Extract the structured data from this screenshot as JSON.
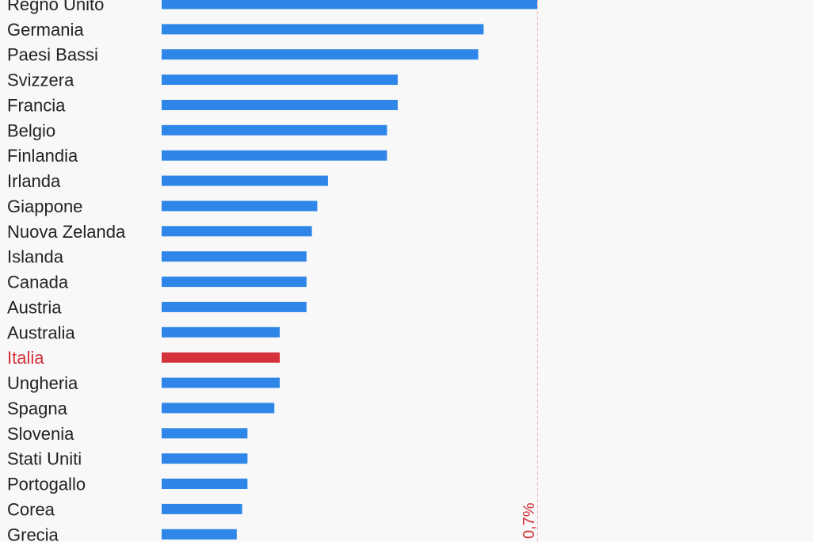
{
  "chart_data": {
    "type": "bar",
    "orientation": "horizontal",
    "title": "",
    "xlabel": "",
    "ylabel": "",
    "categories": [
      "Regno Unito",
      "Germania",
      "Paesi Bassi",
      "Svizzera",
      "Francia",
      "Belgio",
      "Finlandia",
      "Irlanda",
      "Giappone",
      "Nuova Zelanda",
      "Islanda",
      "Canada",
      "Austria",
      "Australia",
      "Italia",
      "Ungheria",
      "Spagna",
      "Slovenia",
      "Stati Uniti",
      "Portogallo",
      "Corea",
      "Grecia"
    ],
    "values": [
      0.7,
      0.6,
      0.59,
      0.44,
      0.44,
      0.42,
      0.42,
      0.31,
      0.29,
      0.28,
      0.27,
      0.27,
      0.27,
      0.22,
      0.22,
      0.22,
      0.21,
      0.16,
      0.16,
      0.16,
      0.15,
      0.14
    ],
    "highlight": "Italia",
    "xlim": [
      0,
      0.7
    ],
    "reference_line": {
      "value": 0.7,
      "label": "0,7%"
    },
    "grid": false
  },
  "colors": {
    "background": "#f8f8f8",
    "bar": "#2e86e8",
    "highlight_bar": "#d4313a",
    "label": "#222222",
    "highlight_label": "#d4313a",
    "reference_line": "#f1b0b5",
    "reference_label": "#d4313a"
  }
}
